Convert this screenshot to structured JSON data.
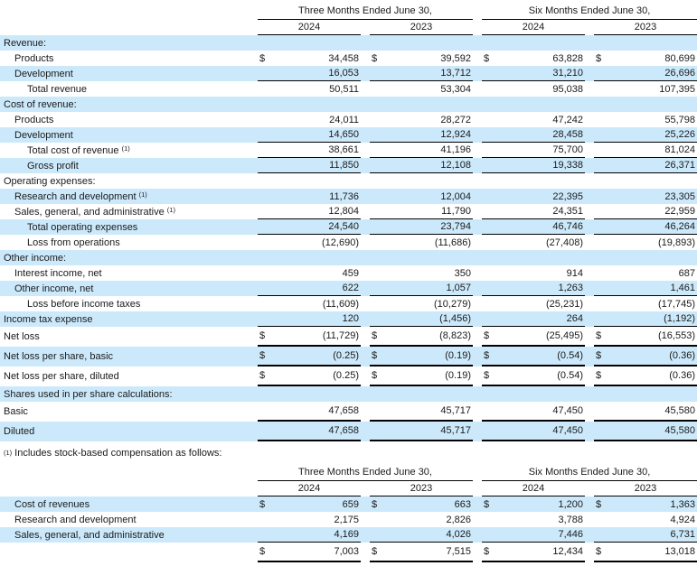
{
  "page": {
    "currency_symbol": "$",
    "shade_color": "#cce9fb",
    "rule_color": "#000000",
    "text_color": "#1a1a1a"
  },
  "footnote": {
    "marker": "(1)",
    "text": "Includes stock-based compensation as follows:"
  },
  "tables": [
    {
      "period_headers": [
        "Three Months Ended June 30,",
        "Six Months Ended June 30,"
      ],
      "year_headers": [
        "2024",
        "2023",
        "2024",
        "2023"
      ],
      "rows": [
        {
          "label": "Revenue:",
          "indent": 0,
          "shaded": true,
          "dollar": false,
          "underline": "none",
          "tall": false,
          "sup": "",
          "values": [
            "",
            "",
            "",
            ""
          ]
        },
        {
          "label": "Products",
          "indent": 1,
          "shaded": false,
          "dollar": true,
          "underline": "none",
          "tall": false,
          "sup": "",
          "values": [
            "34,458",
            "39,592",
            "63,828",
            "80,699"
          ]
        },
        {
          "label": "Development",
          "indent": 1,
          "shaded": true,
          "dollar": false,
          "underline": "thin",
          "tall": false,
          "sup": "",
          "values": [
            "16,053",
            "13,712",
            "31,210",
            "26,696"
          ]
        },
        {
          "label": "Total revenue",
          "indent": 2,
          "shaded": false,
          "dollar": false,
          "underline": "none",
          "tall": false,
          "sup": "",
          "values": [
            "50,511",
            "53,304",
            "95,038",
            "107,395"
          ]
        },
        {
          "label": "Cost of revenue:",
          "indent": 0,
          "shaded": true,
          "dollar": false,
          "underline": "none",
          "tall": false,
          "sup": "",
          "values": [
            "",
            "",
            "",
            ""
          ]
        },
        {
          "label": "Products",
          "indent": 1,
          "shaded": false,
          "dollar": false,
          "underline": "none",
          "tall": false,
          "sup": "",
          "values": [
            "24,011",
            "28,272",
            "47,242",
            "55,798"
          ]
        },
        {
          "label": "Development",
          "indent": 1,
          "shaded": true,
          "dollar": false,
          "underline": "thin",
          "tall": false,
          "sup": "",
          "values": [
            "14,650",
            "12,924",
            "28,458",
            "25,226"
          ]
        },
        {
          "label": "Total cost of revenue",
          "indent": 2,
          "shaded": false,
          "dollar": false,
          "underline": "thin",
          "tall": false,
          "sup": "(1)",
          "values": [
            "38,661",
            "41,196",
            "75,700",
            "81,024"
          ]
        },
        {
          "label": "Gross profit",
          "indent": 2,
          "shaded": true,
          "dollar": false,
          "underline": "thin",
          "tall": false,
          "sup": "",
          "values": [
            "11,850",
            "12,108",
            "19,338",
            "26,371"
          ]
        },
        {
          "label": "Operating expenses:",
          "indent": 0,
          "shaded": false,
          "dollar": false,
          "underline": "none",
          "tall": false,
          "sup": "",
          "values": [
            "",
            "",
            "",
            ""
          ]
        },
        {
          "label": "Research and development",
          "indent": 1,
          "shaded": true,
          "dollar": false,
          "underline": "none",
          "tall": false,
          "sup": "(1)",
          "values": [
            "11,736",
            "12,004",
            "22,395",
            "23,305"
          ]
        },
        {
          "label": "Sales, general, and administrative",
          "indent": 1,
          "shaded": false,
          "dollar": false,
          "underline": "thin",
          "tall": false,
          "sup": "(1)",
          "values": [
            "12,804",
            "11,790",
            "24,351",
            "22,959"
          ]
        },
        {
          "label": "Total operating expenses",
          "indent": 2,
          "shaded": true,
          "dollar": false,
          "underline": "thin",
          "tall": false,
          "sup": "",
          "values": [
            "24,540",
            "23,794",
            "46,746",
            "46,264"
          ]
        },
        {
          "label": "Loss from operations",
          "indent": 2,
          "shaded": false,
          "dollar": false,
          "underline": "none",
          "tall": false,
          "sup": "",
          "values": [
            "(12,690)",
            "(11,686)",
            "(27,408)",
            "(19,893)"
          ]
        },
        {
          "label": "Other income:",
          "indent": 0,
          "shaded": true,
          "dollar": false,
          "underline": "none",
          "tall": false,
          "sup": "",
          "values": [
            "",
            "",
            "",
            ""
          ]
        },
        {
          "label": "Interest income, net",
          "indent": 1,
          "shaded": false,
          "dollar": false,
          "underline": "none",
          "tall": false,
          "sup": "",
          "values": [
            "459",
            "350",
            "914",
            "687"
          ]
        },
        {
          "label": "Other income, net",
          "indent": 1,
          "shaded": true,
          "dollar": false,
          "underline": "thin",
          "tall": false,
          "sup": "",
          "values": [
            "622",
            "1,057",
            "1,263",
            "1,461"
          ]
        },
        {
          "label": "Loss before income taxes",
          "indent": 2,
          "shaded": false,
          "dollar": false,
          "underline": "none",
          "tall": false,
          "sup": "",
          "values": [
            "(11,609)",
            "(10,279)",
            "(25,231)",
            "(17,745)"
          ]
        },
        {
          "label": "Income tax expense",
          "indent": 0,
          "shaded": true,
          "dollar": false,
          "underline": "thin",
          "tall": false,
          "sup": "",
          "values": [
            "120",
            "(1,456)",
            "264",
            "(1,192)"
          ]
        },
        {
          "label": "Net loss",
          "indent": 0,
          "shaded": false,
          "dollar": true,
          "underline": "thick",
          "tall": true,
          "sup": "",
          "values": [
            "(11,729)",
            "(8,823)",
            "(25,495)",
            "(16,553)"
          ]
        },
        {
          "label": "Net loss per share, basic",
          "indent": 0,
          "shaded": true,
          "dollar": true,
          "underline": "thick",
          "tall": true,
          "sup": "",
          "values": [
            "(0.25)",
            "(0.19)",
            "(0.54)",
            "(0.36)"
          ]
        },
        {
          "label": "Net loss per share, diluted",
          "indent": 0,
          "shaded": false,
          "dollar": true,
          "underline": "thick",
          "tall": true,
          "sup": "",
          "values": [
            "(0.25)",
            "(0.19)",
            "(0.54)",
            "(0.36)"
          ]
        },
        {
          "label": "Shares used in per share calculations:",
          "indent": 0,
          "shaded": true,
          "dollar": false,
          "underline": "none",
          "tall": false,
          "sup": "",
          "values": [
            "",
            "",
            "",
            ""
          ]
        },
        {
          "label": "Basic",
          "indent": 0,
          "shaded": false,
          "dollar": false,
          "underline": "thick",
          "tall": true,
          "sup": "",
          "values": [
            "47,658",
            "45,717",
            "47,450",
            "45,580"
          ]
        },
        {
          "label": "Diluted",
          "indent": 0,
          "shaded": true,
          "dollar": false,
          "underline": "thick",
          "tall": true,
          "sup": "",
          "values": [
            "47,658",
            "45,717",
            "47,450",
            "45,580"
          ]
        }
      ]
    },
    {
      "period_headers": [
        "Three Months Ended June 30,",
        "Six Months Ended June 30,"
      ],
      "year_headers": [
        "2024",
        "2023",
        "2024",
        "2023"
      ],
      "rows": [
        {
          "label": "Cost of revenues",
          "indent": 1,
          "shaded": true,
          "dollar": true,
          "underline": "none",
          "tall": false,
          "sup": "",
          "values": [
            "659",
            "663",
            "1,200",
            "1,363"
          ]
        },
        {
          "label": "Research and development",
          "indent": 1,
          "shaded": false,
          "dollar": false,
          "underline": "none",
          "tall": false,
          "sup": "",
          "values": [
            "2,175",
            "2,826",
            "3,788",
            "4,924"
          ]
        },
        {
          "label": "Sales, general, and administrative",
          "indent": 1,
          "shaded": true,
          "dollar": false,
          "underline": "thin",
          "tall": false,
          "sup": "",
          "values": [
            "4,169",
            "4,026",
            "7,446",
            "6,731"
          ]
        },
        {
          "label": "",
          "indent": 0,
          "shaded": false,
          "dollar": true,
          "underline": "thick",
          "tall": true,
          "sup": "",
          "values": [
            "7,003",
            "7,515",
            "12,434",
            "13,018"
          ]
        }
      ]
    }
  ]
}
